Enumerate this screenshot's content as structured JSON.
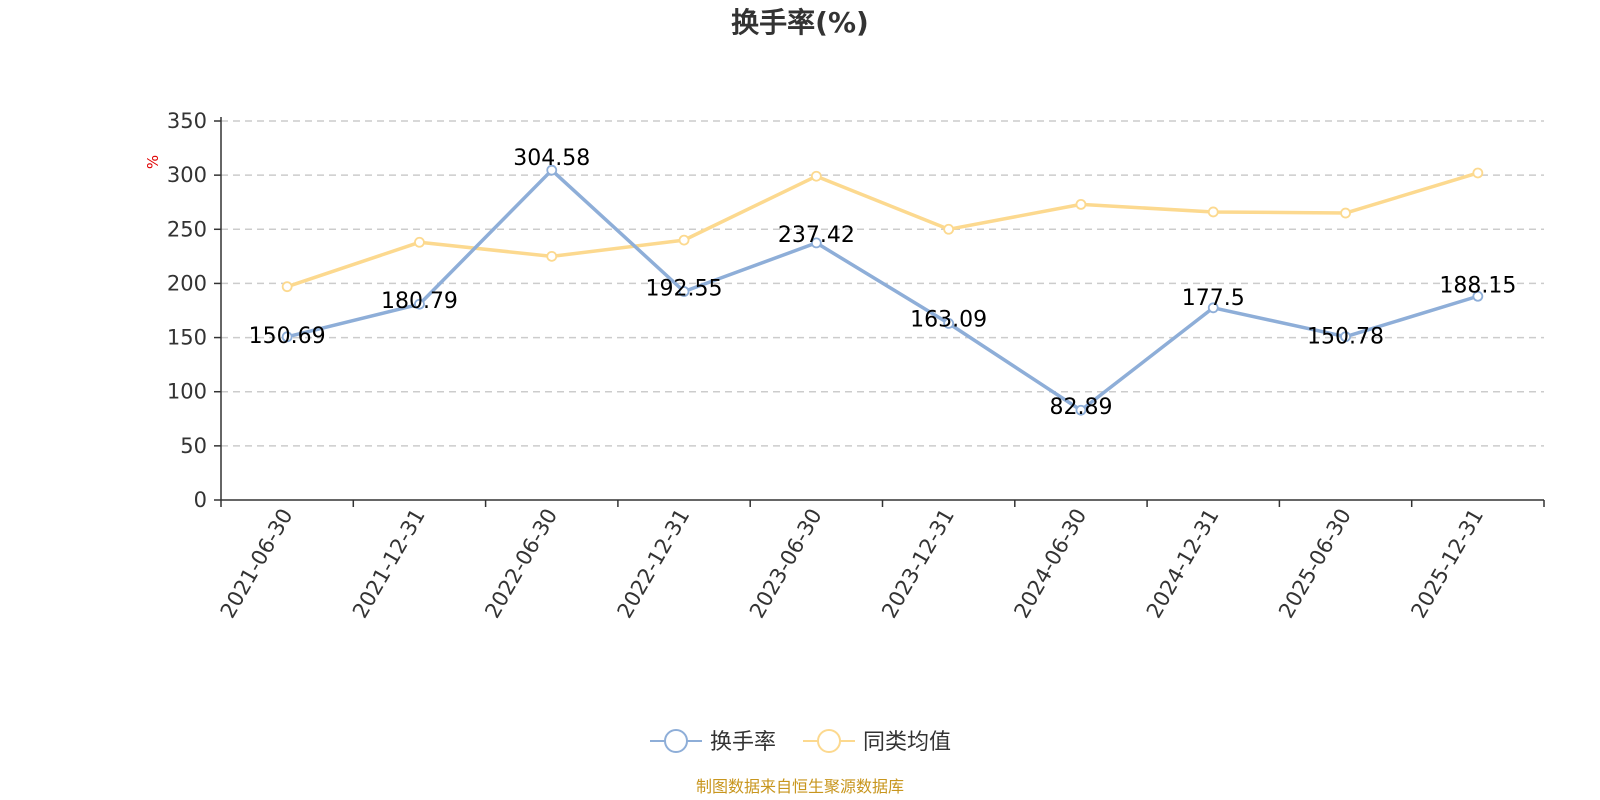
{
  "chart_data": {
    "type": "line",
    "title": "换手率(%)",
    "ylabel": "%",
    "ylim": [
      0,
      350
    ],
    "yticks": [
      0,
      50,
      100,
      150,
      200,
      250,
      300,
      350
    ],
    "grid": true,
    "categories": [
      "2021-06-30",
      "2021-12-31",
      "2022-06-30",
      "2022-12-31",
      "2023-06-30",
      "2023-12-31",
      "2024-06-30",
      "2024-12-31",
      "2025-06-30",
      "2025-12-31"
    ],
    "series": [
      {
        "name": "换手率",
        "color": "#8eaed8",
        "values": [
          150.69,
          180.79,
          304.58,
          192.55,
          237.42,
          163.09,
          82.89,
          177.5,
          150.78,
          188.15
        ],
        "labels": [
          "150.69",
          "180.79",
          "304.58",
          "192.55",
          "237.42",
          "163.09",
          "82.89",
          "177.5",
          "150.78",
          "188.15"
        ]
      },
      {
        "name": "同类均值",
        "color": "#fcd98f",
        "values": [
          197,
          238,
          225,
          240,
          299,
          250,
          273,
          266,
          265,
          302
        ]
      }
    ],
    "legend_position": "bottom-center"
  },
  "source_note": "制图数据来自恒生聚源数据库",
  "source_color": "#c8961e"
}
